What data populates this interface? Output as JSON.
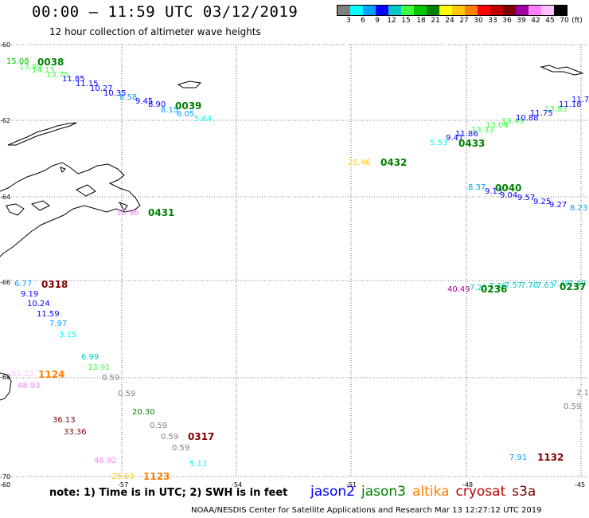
{
  "header": {
    "title": "00:00 – 11:59 UTC 03/12/2019",
    "subtitle": "12 hour collection of altimeter wave heights"
  },
  "legend": {
    "unit_label": "(ft)",
    "colors": [
      "#808080",
      "#00ffff",
      "#00a0ff",
      "#0000ff",
      "#00c8c8",
      "#40ff40",
      "#00c800",
      "#008000",
      "#ffff00",
      "#ffc800",
      "#ff8000",
      "#ff0000",
      "#c00000",
      "#800000",
      "#a000a0",
      "#ff80ff",
      "#ffc0ff",
      "#000000"
    ],
    "labels": [
      "3",
      "6",
      "9",
      "12",
      "15",
      "18",
      "21",
      "24",
      "27",
      "30",
      "33",
      "36",
      "39",
      "42",
      "45",
      "70"
    ]
  },
  "map": {
    "lat_labels": [
      "-60",
      "-62",
      "-64",
      "-66",
      "-68",
      "-70"
    ],
    "lon_labels": [
      "-60",
      "-57",
      "-54",
      "-51",
      "-48",
      "-45"
    ],
    "track_labels": [
      {
        "text": "0038",
        "color": "#008000"
      },
      {
        "text": "0039",
        "color": "#008000"
      },
      {
        "text": "0431",
        "color": "#008000"
      },
      {
        "text": "0432",
        "color": "#008000"
      },
      {
        "text": "0433",
        "color": "#008000"
      },
      {
        "text": "0040",
        "color": "#008000"
      },
      {
        "text": "0236",
        "color": "#008000"
      },
      {
        "text": "0237",
        "color": "#008000"
      },
      {
        "text": "0318",
        "color": "#800000"
      },
      {
        "text": "1124",
        "color": "#ff8000"
      },
      {
        "text": "0317",
        "color": "#800000"
      },
      {
        "text": "1123",
        "color": "#ff8000"
      },
      {
        "text": "1132",
        "color": "#800000"
      }
    ],
    "values": [
      {
        "text": "15.08",
        "color": "#00c800"
      },
      {
        "text": "13.89",
        "color": "#40ff40"
      },
      {
        "text": "14.13",
        "color": "#40ff40"
      },
      {
        "text": "13.75",
        "color": "#40ff40"
      },
      {
        "text": "11.85",
        "color": "#0000ff"
      },
      {
        "text": "11.15",
        "color": "#0000ff"
      },
      {
        "text": "10.27",
        "color": "#0000ff"
      },
      {
        "text": "10.35",
        "color": "#0000ff"
      },
      {
        "text": "8.58",
        "color": "#00a0ff"
      },
      {
        "text": "9.45",
        "color": "#0000ff"
      },
      {
        "text": "8.90",
        "color": "#0000ff"
      },
      {
        "text": "8.15",
        "color": "#00a0ff"
      },
      {
        "text": "6.05",
        "color": "#00a0ff"
      },
      {
        "text": "5.64",
        "color": "#00ffff"
      },
      {
        "text": "10.96",
        "color": "#ff80ff"
      },
      {
        "text": "25.46",
        "color": "#ffc800"
      },
      {
        "text": "5.53",
        "color": "#00ffff"
      },
      {
        "text": "9.41",
        "color": "#0000ff"
      },
      {
        "text": "11.86",
        "color": "#0000ff"
      },
      {
        "text": "13.33",
        "color": "#40ff40"
      },
      {
        "text": "13.04",
        "color": "#40ff40"
      },
      {
        "text": "13.49",
        "color": "#40ff40"
      },
      {
        "text": "10.88",
        "color": "#0000ff"
      },
      {
        "text": "11.75",
        "color": "#0000ff"
      },
      {
        "text": "13.83",
        "color": "#40ff40"
      },
      {
        "text": "11.18",
        "color": "#0000ff"
      },
      {
        "text": "11.7",
        "color": "#0000ff"
      },
      {
        "text": "8.37",
        "color": "#00a0ff"
      },
      {
        "text": "9.13",
        "color": "#0000ff"
      },
      {
        "text": "9.04",
        "color": "#0000ff"
      },
      {
        "text": "9.57",
        "color": "#0000ff"
      },
      {
        "text": "9.25",
        "color": "#0000ff"
      },
      {
        "text": "9.27",
        "color": "#0000ff"
      },
      {
        "text": "8.23",
        "color": "#00a0ff"
      },
      {
        "text": "40.49",
        "color": "#a000a0"
      },
      {
        "text": "7.25",
        "color": "#00c8c8"
      },
      {
        "text": "7.36",
        "color": "#00c8c8"
      },
      {
        "text": "7.57",
        "color": "#00c8c8"
      },
      {
        "text": "7.70",
        "color": "#00c8c8"
      },
      {
        "text": "7.63",
        "color": "#00c8c8"
      },
      {
        "text": "7.49",
        "color": "#00c8c8"
      },
      {
        "text": "7.49",
        "color": "#00c8c8"
      },
      {
        "text": "6.77",
        "color": "#00a0ff"
      },
      {
        "text": "9.19",
        "color": "#0000ff"
      },
      {
        "text": "10.24",
        "color": "#0000ff"
      },
      {
        "text": "11.59",
        "color": "#0000ff"
      },
      {
        "text": "7.97",
        "color": "#00a0ff"
      },
      {
        "text": "3.15",
        "color": "#00ffff"
      },
      {
        "text": "6.99",
        "color": "#00c8c8"
      },
      {
        "text": "13.91",
        "color": "#40ff40"
      },
      {
        "text": "0.59",
        "color": "#808080"
      },
      {
        "text": "0.59",
        "color": "#808080"
      },
      {
        "text": "51.23",
        "color": "#ffc0ff"
      },
      {
        "text": "48.93",
        "color": "#ff80ff"
      },
      {
        "text": "20.30",
        "color": "#008000"
      },
      {
        "text": "0.59",
        "color": "#808080"
      },
      {
        "text": "0.59",
        "color": "#808080"
      },
      {
        "text": "0.59",
        "color": "#808080"
      },
      {
        "text": "36.13",
        "color": "#800000"
      },
      {
        "text": "33.36",
        "color": "#800000"
      },
      {
        "text": "46.92",
        "color": "#ff80ff"
      },
      {
        "text": "25.69",
        "color": "#ffc800"
      },
      {
        "text": "5.17",
        "color": "#00ffff"
      },
      {
        "text": "2.1",
        "color": "#808080"
      },
      {
        "text": "0.59",
        "color": "#808080"
      },
      {
        "text": "7.91",
        "color": "#00a0ff"
      }
    ]
  },
  "footer": {
    "note": "note: 1) Time is in UTC; 2) SWH is in feet",
    "satellites": [
      {
        "name": "jason2",
        "color": "#0000ff"
      },
      {
        "name": "jason3",
        "color": "#008000"
      },
      {
        "name": "altika",
        "color": "#ff8000"
      },
      {
        "name": "cryosat",
        "color": "#c00000"
      },
      {
        "name": "s3a",
        "color": "#800000"
      }
    ],
    "credit": "NOAA/NESDIS Center for Satellite Applications and Research    Mar 13 12:27:12 UTC 2019"
  }
}
